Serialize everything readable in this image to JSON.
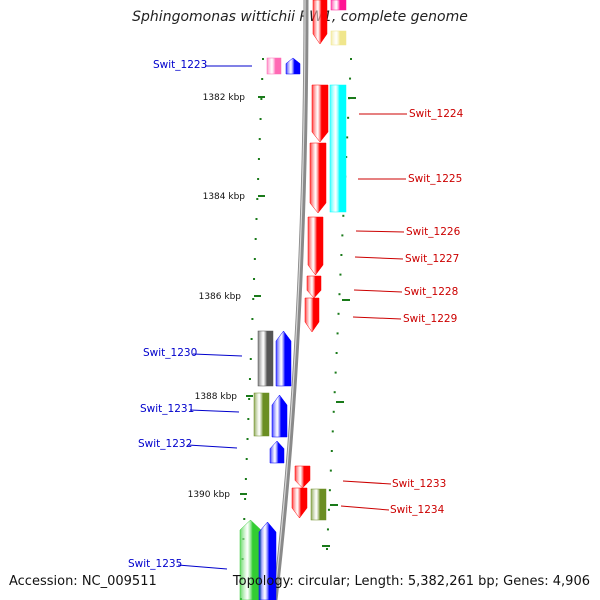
{
  "title": "Sphingomonas wittichii RW1, complete genome",
  "footer": {
    "accession": "Accession: NC_009511",
    "summary": "Topology: circular; Length: 5,382,261 bp; Genes: 4,906"
  },
  "colors": {
    "left_label": "#0000cc",
    "right_label": "#cc0000",
    "tick": "#1a7a1a",
    "backbone": "#8a8a8a",
    "red": "#ff0000",
    "blue": "#0000ff",
    "magenta": "#ff1493",
    "pink": "#ff69b4",
    "cyan": "#00ffff",
    "gray": "#555555",
    "olive": "#6b8e23",
    "green": "#32cd32",
    "khaki": "#f0e68c"
  },
  "kbp_labels": [
    "1382 kbp",
    "1384 kbp",
    "1386 kbp",
    "1388 kbp",
    "1390 kbp"
  ],
  "gene_labels": [
    "Swit_1223",
    "Swit_1224",
    "Swit_1225",
    "Swit_1226",
    "Swit_1227",
    "Swit_1228",
    "Swit_1229",
    "Swit_1230",
    "Swit_1231",
    "Swit_1232",
    "Swit_1233",
    "Swit_1234",
    "Swit_1235"
  ]
}
